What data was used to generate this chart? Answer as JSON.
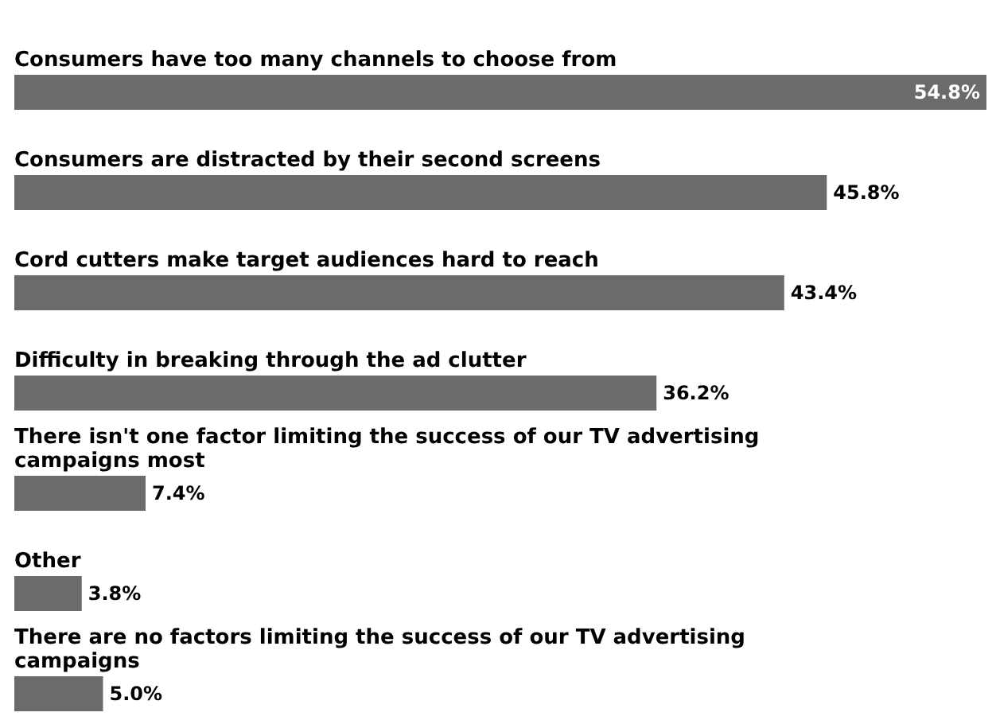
{
  "chart_data": {
    "type": "bar",
    "orientation": "horizontal",
    "categories": [
      "Consumers have too many channels to choose from",
      "Consumers are distracted by their second screens",
      "Cord cutters make target audiences hard to reach",
      "Difficulty in breaking through the ad clutter",
      "There isn't one factor limiting the success of our TV advertising campaigns most",
      "Other",
      "There are no factors limiting the success of our TV advertising campaigns"
    ],
    "values": [
      54.8,
      45.8,
      43.4,
      36.2,
      7.4,
      3.8,
      5.0
    ],
    "value_labels": [
      "54.8%",
      "45.8%",
      "43.4%",
      "36.2%",
      "7.4%",
      "3.8%",
      "5.0%"
    ],
    "color": "#6b6b6b"
  }
}
